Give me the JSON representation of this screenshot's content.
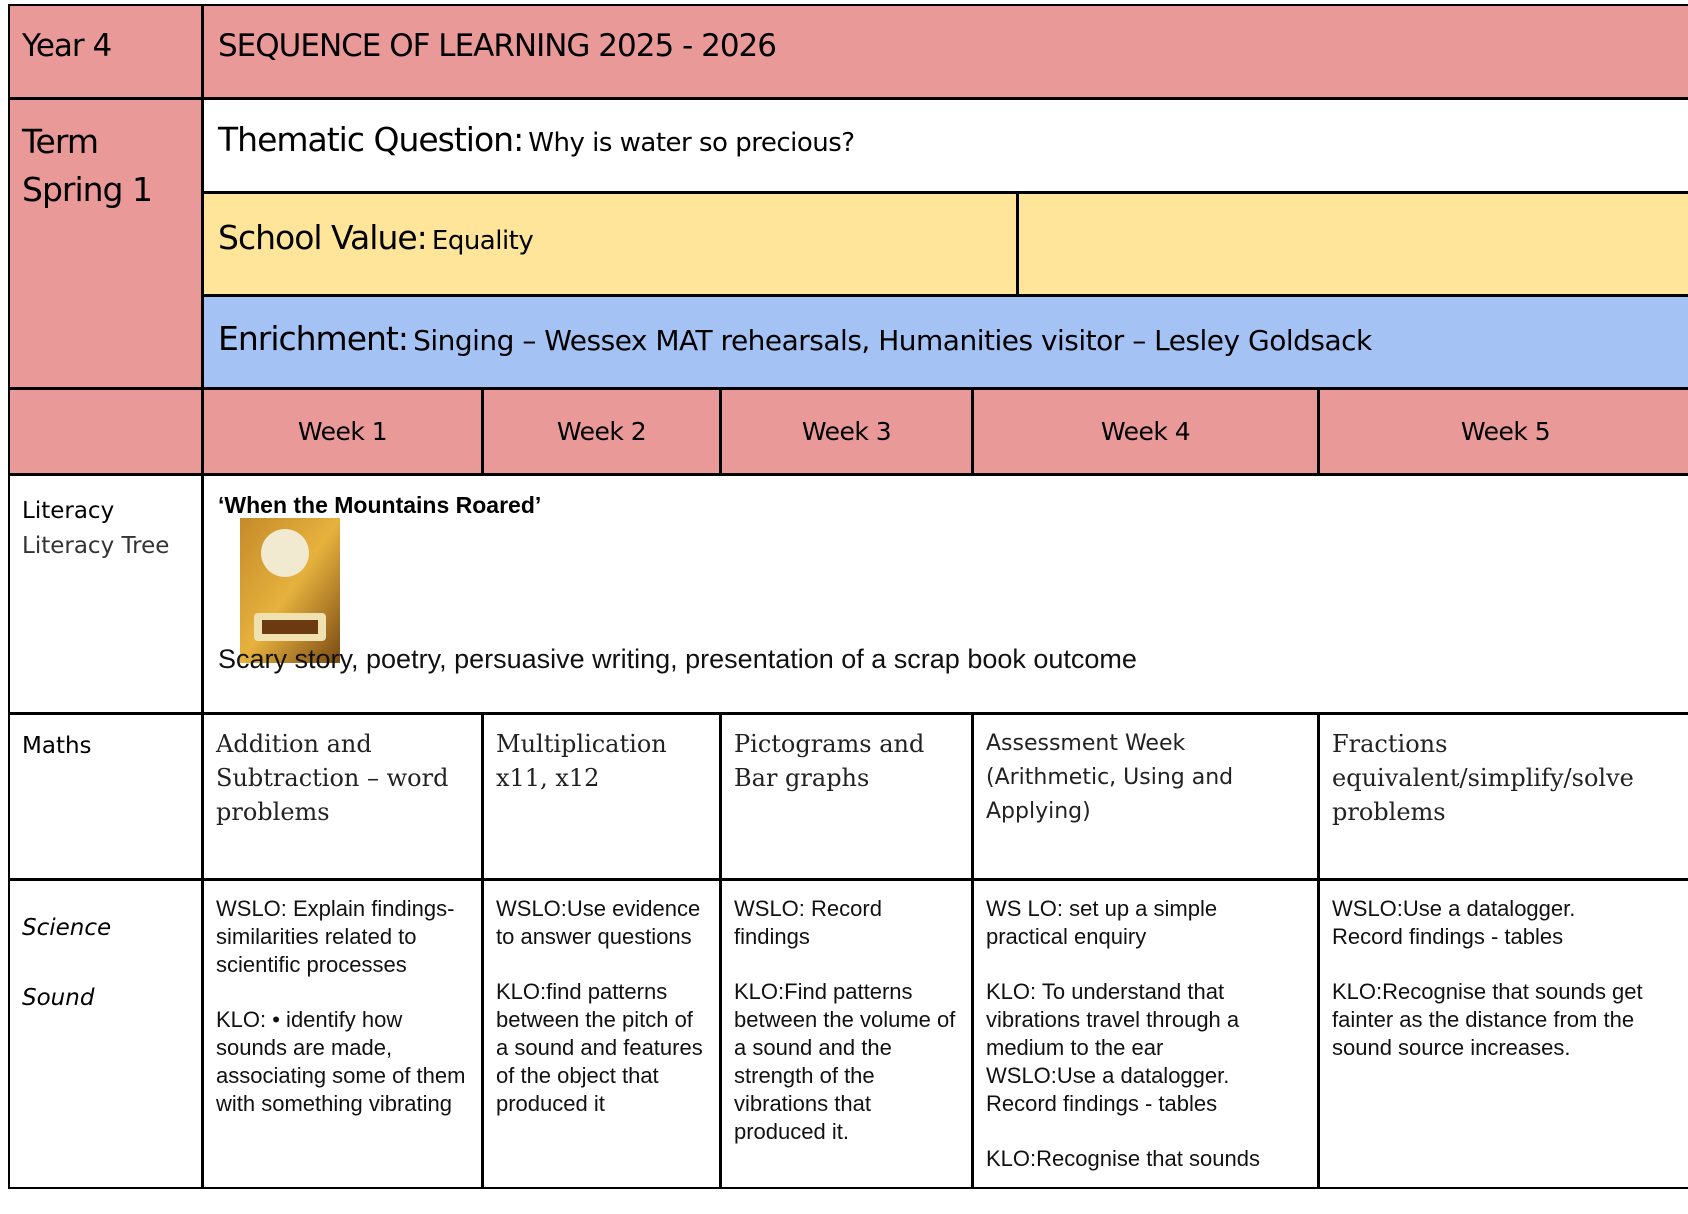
{
  "header": {
    "year": "Year 4",
    "title": "SEQUENCE OF LEARNING 2025 - 2026"
  },
  "term": {
    "label": "Term",
    "name": "Spring 1"
  },
  "thematic_question": {
    "label": "Thematic Question:",
    "text": "Why is water so precious?"
  },
  "school_value": {
    "label": "School Value:",
    "text": "Equality"
  },
  "enrichment": {
    "label": "Enrichment:",
    "text": "Singing – Wessex MAT rehearsals, Humanities visitor – Lesley Goldsack"
  },
  "weeks": [
    "Week 1",
    "Week 2",
    "Week 3",
    "Week 4",
    "Week 5"
  ],
  "literacy": {
    "subject": "Literacy",
    "provider": "Literacy Tree",
    "book_title": "‘When the Mountains Roared’",
    "description": "Scary story, poetry, persuasive writing, presentation of a scrap book outcome"
  },
  "maths": {
    "subject": "Maths",
    "cells": [
      "Addition and Subtraction – word problems",
      "Multiplication x11, x12",
      "Pictograms and Bar graphs",
      "Assessment Week (Arithmetic, Using and Applying)",
      "Fractions equivalent/simplify/solve problems"
    ]
  },
  "science": {
    "subject": "Science",
    "topic": "Sound",
    "cells": [
      [
        [
          "WSLO:  Explain findings- similarities related to scientific processes"
        ],
        [
          "KLO: •   identify how sounds are made, associating some of them with something vibrating"
        ]
      ],
      [
        [
          "WSLO:Use evidence to answer questions"
        ],
        [
          "KLO:find patterns between the pitch of a sound and features of the object that produced it"
        ]
      ],
      [
        [
          "WSLO: Record findings"
        ],
        [
          "KLO:Find patterns between  the volume of a sound  and the strength of  the vibrations that produced it."
        ]
      ],
      [
        [
          "WS LO: set up a simple practical enquiry"
        ],
        [
          "KLO: To understand that vibrations travel through a medium to the ear",
          "WSLO:Use a datalogger. Record findings - tables"
        ],
        [
          "KLO:Recognise that sounds"
        ]
      ],
      [
        [
          "WSLO:Use a datalogger.",
          "Record findings - tables"
        ],
        [
          "KLO:Recognise that sounds  get fainter as the  distance from the sound source  increases."
        ]
      ]
    ]
  }
}
